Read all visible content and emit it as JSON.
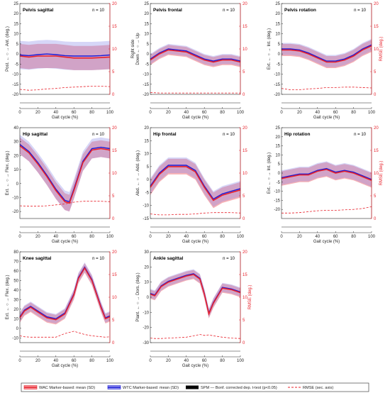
{
  "chart_data": [
    {
      "type": "line",
      "title": "Pelvis sagittal",
      "n_label": "n = 10",
      "ylabel": "Post. ← ○ → Ant. (deg.)",
      "xlabel": "Gait cycle (%)",
      "ylim": [
        -20,
        25
      ],
      "yticks": [
        -20,
        -15,
        -10,
        -5,
        0,
        5,
        10,
        15,
        20,
        25
      ],
      "y2label": "",
      "y2lim": [
        0,
        20
      ],
      "y2ticks": [
        0,
        5,
        10,
        15,
        20
      ],
      "xticks": [
        0,
        20,
        40,
        60,
        80,
        100
      ],
      "x": [
        0,
        10,
        20,
        30,
        40,
        50,
        60,
        70,
        80,
        90,
        100
      ],
      "series": [
        {
          "name": "WAC Marker-based: mean (SD)",
          "values": [
            -1,
            -1.5,
            -1,
            -1,
            -1,
            -1.5,
            -2,
            -2,
            -2,
            -1.8,
            -1.5
          ],
          "sd": [
            6,
            6,
            6,
            6,
            6,
            6,
            6,
            6,
            6,
            6,
            6
          ]
        },
        {
          "name": "WTC Marker-based: mean (SD)",
          "values": [
            -0.5,
            -0.8,
            -0.3,
            0,
            -0.3,
            -0.8,
            -1,
            -1,
            -1,
            -0.8,
            -0.5
          ],
          "sd": [
            7,
            7,
            7,
            7,
            7,
            7,
            7,
            7,
            7,
            7,
            7
          ]
        },
        {
          "name": "RMSE (sec. axis)",
          "axis": "secondary",
          "values": [
            1.1,
            0.9,
            1.0,
            1.2,
            1.3,
            1.5,
            1.6,
            1.7,
            1.8,
            1.8,
            1.7
          ]
        }
      ]
    },
    {
      "type": "line",
      "title": "Pelvis frontal",
      "n_label": "n = 10",
      "ylabel": "Down ← ○ → Up",
      "ylabel2": "Right side",
      "xlabel": "Gait cycle (%)",
      "ylim": [
        -20,
        25
      ],
      "yticks": [
        -20,
        -15,
        -10,
        -5,
        0,
        5,
        10,
        15,
        20,
        25
      ],
      "y2label": "",
      "y2lim": [
        0,
        20
      ],
      "y2ticks": [
        0,
        5,
        10,
        15,
        20
      ],
      "xticks": [
        0,
        20,
        40,
        60,
        80,
        100
      ],
      "x": [
        0,
        10,
        20,
        30,
        40,
        50,
        60,
        70,
        80,
        90,
        100
      ],
      "series": [
        {
          "name": "WAC Marker-based: mean (SD)",
          "values": [
            -3,
            0,
            2,
            1.5,
            1,
            -1,
            -3,
            -4,
            -3,
            -3,
            -4
          ],
          "sd": [
            2.5,
            2.5,
            2.5,
            2.5,
            2.5,
            2.5,
            2.5,
            2.5,
            2.5,
            2.5,
            2.5
          ]
        },
        {
          "name": "WTC Marker-based: mean (SD)",
          "values": [
            -2.5,
            0.5,
            2.5,
            2,
            1.5,
            -0.5,
            -2.5,
            -3.5,
            -2.5,
            -2.5,
            -3.5
          ],
          "sd": [
            2.5,
            2.5,
            2.5,
            2.5,
            2.5,
            2.5,
            2.5,
            2.5,
            2.5,
            2.5,
            2.5
          ]
        },
        {
          "name": "RMSE (sec. axis)",
          "axis": "secondary",
          "values": [
            0.4,
            0.3,
            0.3,
            0.3,
            0.3,
            0.3,
            0.3,
            0.3,
            0.3,
            0.3,
            0.3
          ]
        }
      ]
    },
    {
      "type": "line",
      "title": "Pelvis rotation",
      "n_label": "n = 10",
      "ylabel": "Ext. ← ○ → Int. (deg.)",
      "xlabel": "Gait cycle (%)",
      "ylim": [
        -20,
        25
      ],
      "yticks": [
        -20,
        -15,
        -10,
        -5,
        0,
        5,
        10,
        15,
        20,
        25
      ],
      "y2label": "RMSE (deg.)",
      "y2lim": [
        0,
        20
      ],
      "y2ticks": [
        0,
        5,
        10,
        15,
        20
      ],
      "xticks": [
        0,
        20,
        40,
        60,
        80,
        100
      ],
      "x": [
        0,
        10,
        20,
        30,
        40,
        50,
        60,
        70,
        80,
        90,
        100
      ],
      "series": [
        {
          "name": "WAC Marker-based: mean (SD)",
          "values": [
            2,
            2,
            1.5,
            0,
            -2,
            -4,
            -4,
            -3,
            -1,
            2,
            4
          ],
          "sd": [
            3,
            3,
            3,
            3,
            3,
            3,
            3,
            3,
            3,
            3,
            3
          ]
        },
        {
          "name": "WTC Marker-based: mean (SD)",
          "values": [
            2.5,
            2.5,
            2,
            0.5,
            -1.5,
            -3.5,
            -3.5,
            -2.5,
            -0.5,
            2.5,
            4.5
          ],
          "sd": [
            3,
            3,
            3,
            3,
            3,
            3,
            3,
            3,
            3,
            3,
            3
          ]
        },
        {
          "name": "RMSE (sec. axis)",
          "axis": "secondary",
          "values": [
            1.3,
            1.0,
            1.0,
            1.2,
            1.3,
            1.5,
            1.5,
            1.6,
            1.6,
            1.5,
            1.4
          ]
        }
      ]
    },
    {
      "type": "line",
      "title": "Hip sagittal",
      "n_label": "n = 10",
      "ylabel": "Ext. ← ○ → Flex. (deg.)",
      "xlabel": "Gait cycle (%)",
      "ylim": [
        -25,
        40
      ],
      "yticks": [
        -20,
        -10,
        0,
        10,
        20,
        30,
        40
      ],
      "y2label": "",
      "y2lim": [
        0,
        20
      ],
      "y2ticks": [
        0,
        5,
        10,
        15,
        20
      ],
      "xticks": [
        0,
        20,
        40,
        60,
        80,
        100
      ],
      "x": [
        0,
        10,
        20,
        30,
        40,
        50,
        55,
        60,
        70,
        80,
        90,
        100
      ],
      "series": [
        {
          "name": "WAC Marker-based: mean (SD)",
          "values": [
            27,
            22,
            14,
            5,
            -5,
            -13,
            -14,
            -5,
            15,
            24,
            25,
            24
          ],
          "sd": [
            6,
            6,
            6,
            6,
            6,
            6,
            6,
            6,
            6,
            6,
            6,
            6
          ]
        },
        {
          "name": "WTC Marker-based: mean (SD)",
          "values": [
            28,
            23,
            15,
            6,
            -4,
            -12,
            -13,
            -4,
            16,
            25,
            26,
            25
          ],
          "sd": [
            7,
            7,
            7,
            7,
            7,
            7,
            7,
            7,
            7,
            7,
            7,
            7
          ]
        },
        {
          "name": "RMSE (sec. axis)",
          "axis": "secondary",
          "values": [
            2.8,
            2.7,
            2.7,
            2.8,
            3.0,
            3.2,
            3.4,
            3.6,
            3.8,
            3.8,
            3.8,
            3.7
          ]
        }
      ]
    },
    {
      "type": "line",
      "title": "Hip frontal",
      "n_label": "n = 10",
      "ylabel": "Abd. ← ○ → Add. (deg.)",
      "xlabel": "Gait cycle (%)",
      "ylim": [
        -15,
        20
      ],
      "yticks": [
        -15,
        -10,
        -5,
        0,
        5,
        10,
        15,
        20
      ],
      "y2label": "",
      "y2lim": [
        0,
        20
      ],
      "y2ticks": [
        0,
        5,
        10,
        15,
        20
      ],
      "xticks": [
        0,
        20,
        40,
        60,
        80,
        100
      ],
      "x": [
        0,
        10,
        20,
        30,
        40,
        50,
        60,
        70,
        80,
        90,
        100
      ],
      "series": [
        {
          "name": "WAC Marker-based: mean (SD)",
          "values": [
            -3,
            2,
            5,
            5,
            5,
            3,
            -3,
            -8,
            -6,
            -5,
            -4
          ],
          "sd": [
            3,
            3,
            3,
            3,
            3,
            3,
            3,
            3,
            3,
            3,
            3
          ]
        },
        {
          "name": "WTC Marker-based: mean (SD)",
          "values": [
            -2.5,
            2.5,
            5.5,
            5.5,
            5.5,
            3.5,
            -2.5,
            -7.5,
            -5.5,
            -4.5,
            -3.5
          ],
          "sd": [
            3,
            3,
            3,
            3,
            3,
            3,
            3,
            3,
            3,
            3,
            3
          ]
        },
        {
          "name": "RMSE (sec. axis)",
          "axis": "secondary",
          "values": [
            1.0,
            0.8,
            0.8,
            0.9,
            0.9,
            1.0,
            1.2,
            1.3,
            1.3,
            1.3,
            1.2
          ]
        }
      ]
    },
    {
      "type": "line",
      "title": "Hip rotation",
      "n_label": "n = 10",
      "ylabel": "Ext. ← ○ → Int. (deg.)",
      "xlabel": "Gait cycle (%)",
      "ylim": [
        -25,
        25
      ],
      "yticks": [
        -20,
        -15,
        -10,
        -5,
        0,
        5,
        10,
        15,
        20,
        25
      ],
      "y2label": "RMSE (deg.)",
      "y2lim": [
        0,
        20
      ],
      "y2ticks": [
        0,
        5,
        10,
        15,
        20
      ],
      "xticks": [
        0,
        20,
        40,
        60,
        80,
        100
      ],
      "x": [
        0,
        10,
        20,
        30,
        40,
        50,
        60,
        70,
        80,
        90,
        100
      ],
      "series": [
        {
          "name": "WAC Marker-based: mean (SD)",
          "values": [
            -3,
            -2,
            -1,
            -1,
            1,
            2,
            0,
            1,
            0,
            -2,
            -4
          ],
          "sd": [
            4,
            4,
            4,
            4,
            4,
            4,
            4,
            4,
            4,
            4,
            4
          ]
        },
        {
          "name": "WTC Marker-based: mean (SD)",
          "values": [
            -2.5,
            -1.5,
            -0.5,
            -0.5,
            1.5,
            2.5,
            0.5,
            1.5,
            0.5,
            -1.5,
            -3.5
          ],
          "sd": [
            4,
            4,
            4,
            4,
            4,
            4,
            4,
            4,
            4,
            4,
            4
          ]
        },
        {
          "name": "RMSE (sec. axis)",
          "axis": "secondary",
          "values": [
            1.2,
            1.2,
            1.3,
            1.5,
            1.7,
            1.8,
            1.8,
            1.9,
            2.0,
            2.2,
            2.6
          ]
        }
      ]
    },
    {
      "type": "line",
      "title": "Knee sagittal",
      "n_label": "n = 10",
      "ylabel": "Ext. ← ○ → Flex. (deg.)",
      "xlabel": "Gait cycle (%)",
      "ylim": [
        -15,
        80
      ],
      "yticks": [
        -10,
        0,
        10,
        20,
        30,
        40,
        50,
        60,
        70,
        80
      ],
      "y2label": "",
      "y2lim": [
        0,
        20
      ],
      "y2ticks": [
        0,
        5,
        10,
        15,
        20
      ],
      "xticks": [
        0,
        20,
        40,
        60,
        80,
        100
      ],
      "x": [
        0,
        5,
        12,
        20,
        30,
        40,
        50,
        60,
        65,
        72,
        80,
        90,
        95,
        100
      ],
      "series": [
        {
          "name": "WAC Marker-based: mean (SD)",
          "values": [
            11,
            18,
            22,
            17,
            11,
            9,
            15,
            35,
            52,
            63,
            50,
            22,
            10,
            12
          ],
          "sd": [
            5,
            5,
            5,
            5,
            5,
            5,
            5,
            5,
            5,
            5,
            5,
            5,
            5,
            5
          ]
        },
        {
          "name": "WTC Marker-based: mean (SD)",
          "values": [
            12,
            19,
            23,
            18,
            12,
            10,
            16,
            36,
            53,
            64,
            51,
            23,
            11,
            13
          ],
          "sd": [
            5,
            5,
            5,
            5,
            5,
            5,
            5,
            5,
            5,
            5,
            5,
            5,
            5,
            5
          ]
        },
        {
          "name": "RMSE (sec. axis)",
          "axis": "secondary",
          "values": [
            1.5,
            1.3,
            1.2,
            1.2,
            1.2,
            1.2,
            2.0,
            2.5,
            2.2,
            1.8,
            1.5,
            1.3,
            1.2,
            1.3
          ]
        }
      ]
    },
    {
      "type": "line",
      "title": "Ankle sagittal",
      "n_label": "n = 10",
      "ylabel": "Plant. ← ○ → Dors. (deg.)",
      "xlabel": "Gait cycle (%)",
      "ylim": [
        -30,
        30
      ],
      "yticks": [
        -30,
        -20,
        -10,
        0,
        10,
        20,
        30
      ],
      "y2label": "RMSE (deg.)",
      "y2lim": [
        0,
        20
      ],
      "y2ticks": [
        0,
        5,
        10,
        15,
        20
      ],
      "xticks": [
        0,
        20,
        40,
        60,
        80,
        100
      ],
      "x": [
        0,
        5,
        12,
        20,
        30,
        40,
        48,
        55,
        60,
        65,
        70,
        80,
        90,
        100
      ],
      "series": [
        {
          "name": "WAC Marker-based: mean (SD)",
          "values": [
            2,
            1,
            7,
            10,
            12,
            14,
            15,
            12,
            2,
            -11,
            -4,
            6,
            5,
            3
          ],
          "sd": [
            3,
            3,
            3,
            3,
            3,
            3,
            3,
            3,
            3,
            3,
            3,
            3,
            3,
            3
          ]
        },
        {
          "name": "WTC Marker-based: mean (SD)",
          "values": [
            2.5,
            1.5,
            7.5,
            10.5,
            12.5,
            14.5,
            15.5,
            12.5,
            2.5,
            -10.5,
            -3.5,
            6.5,
            5.5,
            3.5
          ],
          "sd": [
            3,
            3,
            3,
            3,
            3,
            3,
            3,
            3,
            3,
            3,
            3,
            3,
            3,
            3
          ]
        },
        {
          "name": "RMSE (sec. axis)",
          "axis": "secondary",
          "values": [
            1.0,
            0.9,
            0.9,
            1.0,
            1.1,
            1.2,
            1.5,
            1.8,
            1.6,
            1.7,
            1.5,
            1.2,
            1.0,
            0.9
          ]
        }
      ]
    }
  ],
  "legend": [
    {
      "label": "WAC Marker-based: mean (SD)",
      "color": "#e8202a"
    },
    {
      "label": "WTC Marker-based: mean (SD)",
      "color": "#1b1bd6"
    },
    {
      "label": "SPM — Bonf. corrected dep. t-test (p<0.05)",
      "color": "#000000"
    },
    {
      "label": "RMSE (sec. axis)",
      "color": "#e8202a"
    }
  ],
  "colors": {
    "wac": "#e8202a",
    "wtc": "#1b1bd6",
    "wac_band": "#e8202a",
    "wtc_band": "#8a8ae8",
    "rmse": "#e8202a",
    "spm": "#000000"
  }
}
